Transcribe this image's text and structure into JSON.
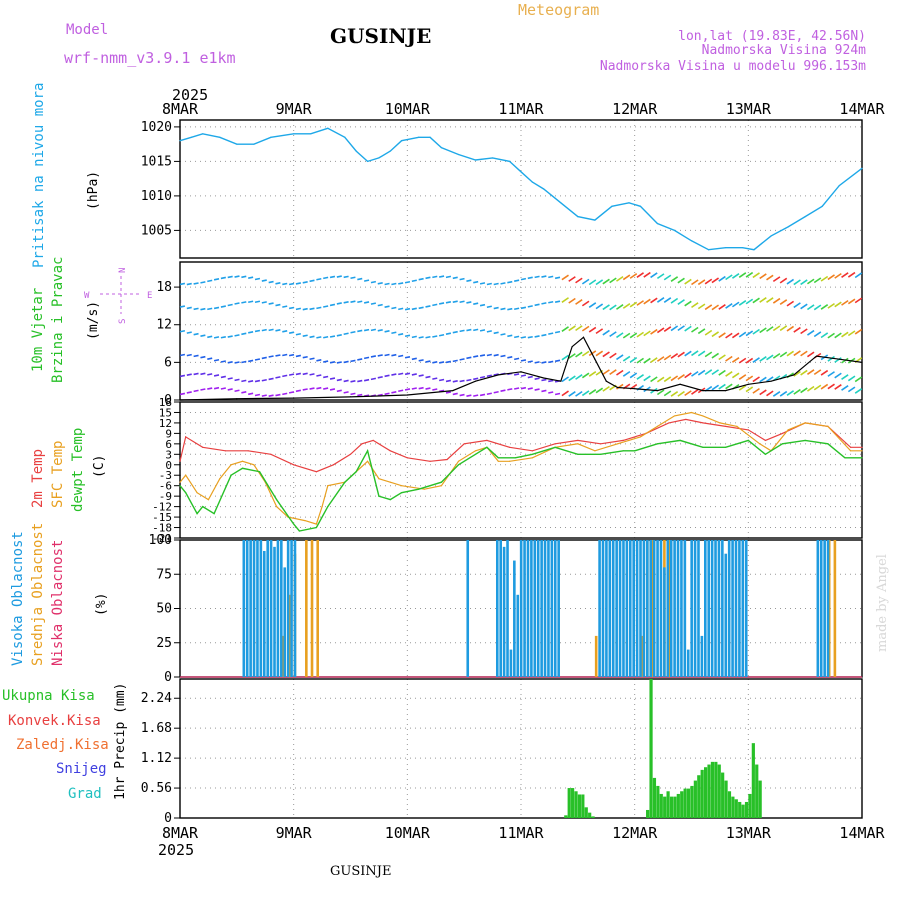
{
  "header": {
    "model_label": "Model",
    "model_name": "wrf-nmm_v3.9.1 e1km",
    "station": "GUSINJE",
    "product": "Meteogram",
    "lonlat": "lon,lat (19.83E, 42.56N)",
    "elevation": "Nadmorska Visina 924m",
    "model_elevation": "Nadmorska Visina u modelu 996.153m",
    "year": "2025",
    "footer_station": "GUSINJE",
    "credit": "made by Angel"
  },
  "colors": {
    "pressure": "#1ea8e8",
    "t2m": "#e84040",
    "sfc": "#e8a020",
    "dewpt": "#28c028",
    "high_cloud": "#1e9be0",
    "mid_cloud": "#e8a020",
    "low_cloud": "#e0306a",
    "precip": "#28c028",
    "label_purple": "#c060e0",
    "wind_speed": "#000000"
  },
  "x_axis": {
    "labels": [
      "8MAR",
      "9MAR",
      "10MAR",
      "11MAR",
      "12MAR",
      "13MAR",
      "14MAR"
    ],
    "start_day": 8,
    "end_day": 14
  },
  "panels": {
    "pressure": {
      "ylabel": "Pritisak na nivou mora",
      "unit": "(hPa)"
    },
    "wind": {
      "ylabel1": "10m Vjetar",
      "ylabel2": "Brzina i Pravac",
      "unit": "(m/s)",
      "compass": {
        "n": "N",
        "s": "S",
        "e": "E",
        "w": "W"
      }
    },
    "temp": {
      "label_t2m": "2m Temp",
      "label_sfc": "SFC Temp",
      "label_dew": "dewpt Temp",
      "unit": "(C)"
    },
    "cloud": {
      "label_high": "Visoka Oblacnost",
      "label_mid": "Srednja Oblacnost",
      "label_low": "Niska Oblacnost",
      "unit": "(%)"
    },
    "precip": {
      "label_total": "Ukupna Kisa",
      "label_conv": "Konvek.Kisa",
      "label_frz": "Zaledj.Kisa",
      "label_snow": "Snijeg",
      "label_hail": "Grad",
      "unit": "1hr Precip (mm)"
    }
  },
  "chart_data": [
    {
      "type": "line",
      "title": "",
      "ylabel": "Pritisak na nivou mora (hPa)",
      "ylim": [
        1001,
        1021
      ],
      "yticks": [
        1005,
        1010,
        1015,
        1020
      ],
      "grid": true,
      "series": [
        {
          "name": "Pritisak na nivou mora",
          "x": [
            8.0,
            8.1,
            8.2,
            8.35,
            8.5,
            8.65,
            8.8,
            9.0,
            9.15,
            9.3,
            9.45,
            9.55,
            9.65,
            9.75,
            9.85,
            9.95,
            10.1,
            10.2,
            10.3,
            10.45,
            10.6,
            10.75,
            10.9,
            11.0,
            11.1,
            11.2,
            11.35,
            11.5,
            11.65,
            11.8,
            11.95,
            12.05,
            12.2,
            12.35,
            12.5,
            12.65,
            12.8,
            12.95,
            13.05,
            13.2,
            13.35,
            13.5,
            13.65,
            13.8,
            14.0
          ],
          "values": [
            1018,
            1018.5,
            1019,
            1018.5,
            1017.5,
            1017.5,
            1018.5,
            1019,
            1019,
            1019.8,
            1018.5,
            1016.5,
            1015,
            1015.5,
            1016.5,
            1018,
            1018.5,
            1018.5,
            1017,
            1016,
            1015.2,
            1015.5,
            1015,
            1013.5,
            1012,
            1011,
            1009,
            1007,
            1006.5,
            1008.5,
            1009,
            1008.5,
            1006,
            1005,
            1003.5,
            1002.2,
            1002.5,
            1002.5,
            1002.2,
            1004.2,
            1005.5,
            1007,
            1008.5,
            1011.5,
            1014
          ]
        }
      ]
    },
    {
      "type": "line",
      "title": "",
      "ylabel": "10m Vjetar Brzina i Pravac (m/s)",
      "ylim": [
        0,
        22
      ],
      "yticks": [
        0,
        6,
        12,
        18
      ],
      "grid": true,
      "series": [
        {
          "name": "wind speed",
          "x": [
            8.0,
            8.5,
            9.0,
            9.5,
            10.0,
            10.4,
            10.6,
            10.8,
            11.0,
            11.2,
            11.35,
            11.45,
            11.55,
            11.65,
            11.75,
            11.85,
            12.0,
            12.2,
            12.4,
            12.6,
            12.8,
            13.0,
            13.2,
            13.4,
            13.6,
            13.8,
            14.0
          ],
          "values": [
            0,
            0.2,
            0.3,
            0.5,
            0.8,
            1.5,
            3,
            4,
            4.5,
            3.5,
            3,
            8.5,
            10,
            6.5,
            3,
            2,
            1.8,
            1.5,
            2.5,
            1.5,
            1.5,
            2.5,
            3,
            4,
            7,
            6.5,
            6
          ]
        }
      ]
    },
    {
      "type": "line",
      "title": "",
      "ylabel": "Temp (C)",
      "ylim": [
        -21,
        18
      ],
      "yticks": [
        -21,
        -18,
        -15,
        -12,
        -9,
        -6,
        -3,
        0,
        3,
        6,
        9,
        12,
        15,
        18
      ],
      "grid": true,
      "series": [
        {
          "name": "2m Temp",
          "x": [
            8.0,
            8.05,
            8.2,
            8.4,
            8.6,
            8.8,
            9.0,
            9.2,
            9.35,
            9.5,
            9.6,
            9.7,
            9.85,
            10.0,
            10.2,
            10.35,
            10.5,
            10.7,
            10.9,
            11.1,
            11.3,
            11.5,
            11.7,
            11.9,
            12.1,
            12.3,
            12.45,
            12.6,
            12.8,
            13.0,
            13.15,
            13.3,
            13.5,
            13.7,
            13.9,
            14.0
          ],
          "values": [
            1,
            8,
            5,
            4,
            4,
            3,
            0,
            -2,
            0,
            3,
            6,
            7,
            4,
            2,
            1,
            1.5,
            6,
            7,
            5,
            4,
            6,
            7,
            6,
            7,
            9,
            12,
            13,
            12,
            11,
            10,
            7,
            9,
            12,
            11,
            5,
            5
          ]
        },
        {
          "name": "SFC Temp",
          "x": [
            8.0,
            8.05,
            8.15,
            8.25,
            8.35,
            8.45,
            8.55,
            8.65,
            8.75,
            8.85,
            8.95,
            9.1,
            9.2,
            9.25,
            9.3,
            9.45,
            9.55,
            9.65,
            9.75,
            9.85,
            9.95,
            10.15,
            10.3,
            10.45,
            10.6,
            10.7,
            10.8,
            10.9,
            11.1,
            11.3,
            11.5,
            11.65,
            11.85,
            12.05,
            12.2,
            12.35,
            12.5,
            12.6,
            12.75,
            12.9,
            13.1,
            13.2,
            13.35,
            13.5,
            13.7,
            13.9,
            14.0
          ],
          "values": [
            -5,
            -3,
            -8,
            -10,
            -4,
            0,
            1,
            0,
            -5,
            -12,
            -15,
            -16,
            -17,
            -12,
            -6,
            -5,
            -2,
            1,
            -4,
            -5,
            -6,
            -7,
            -6,
            1,
            4,
            5,
            1,
            1,
            2,
            5,
            6,
            4,
            6,
            8,
            11,
            14,
            15,
            14,
            12,
            11,
            6,
            4,
            10,
            12,
            11,
            4,
            4
          ]
        },
        {
          "name": "dewpt Temp",
          "x": [
            8.0,
            8.05,
            8.15,
            8.2,
            8.3,
            8.45,
            8.55,
            8.7,
            8.85,
            9.0,
            9.05,
            9.2,
            9.3,
            9.45,
            9.55,
            9.65,
            9.75,
            9.85,
            9.95,
            10.1,
            10.3,
            10.45,
            10.6,
            10.7,
            10.8,
            10.95,
            11.1,
            11.3,
            11.5,
            11.7,
            11.9,
            12.0,
            12.2,
            12.4,
            12.6,
            12.8,
            13.0,
            13.15,
            13.3,
            13.5,
            13.7,
            13.85,
            14.0
          ],
          "values": [
            -6,
            -8,
            -14,
            -12,
            -14,
            -3,
            -1,
            -2,
            -10,
            -17,
            -19,
            -18,
            -12,
            -5,
            -2,
            4,
            -9,
            -10,
            -8,
            -7,
            -5,
            0,
            3,
            5,
            2,
            2,
            3,
            5,
            3,
            3,
            4,
            4,
            6,
            7,
            5,
            5,
            7,
            3,
            6,
            7,
            6,
            2,
            2
          ]
        }
      ]
    },
    {
      "type": "bar",
      "title": "",
      "ylabel": "Oblacnost (%)",
      "ylim": [
        0,
        100
      ],
      "yticks": [
        0,
        25,
        50,
        75,
        100
      ],
      "grid": true,
      "series": [
        {
          "name": "Visoka Oblacnost",
          "x": [
            8.55,
            8.58,
            8.61,
            8.64,
            8.67,
            8.7,
            8.73,
            8.76,
            8.79,
            8.82,
            8.85,
            8.88,
            8.91,
            8.94,
            8.97,
            9.0,
            10.52,
            10.78,
            10.81,
            10.84,
            10.87,
            10.9,
            10.93,
            10.96,
            10.99,
            11.02,
            11.05,
            11.08,
            11.11,
            11.14,
            11.17,
            11.2,
            11.23,
            11.26,
            11.29,
            11.32,
            11.68,
            11.71,
            11.74,
            11.77,
            11.8,
            11.83,
            11.86,
            11.89,
            11.92,
            11.95,
            11.98,
            12.01,
            12.04,
            12.07,
            12.1,
            12.13,
            12.16,
            12.19,
            12.22,
            12.25,
            12.28,
            12.31,
            12.34,
            12.37,
            12.4,
            12.43,
            12.46,
            12.49,
            12.52,
            12.55,
            12.58,
            12.61,
            12.64,
            12.67,
            12.7,
            12.73,
            12.76,
            12.79,
            12.82,
            12.85,
            12.88,
            12.91,
            12.94,
            12.97,
            13.6,
            13.63,
            13.66,
            13.69
          ],
          "values": [
            100,
            100,
            100,
            100,
            100,
            100,
            92,
            100,
            100,
            95,
            100,
            100,
            80,
            100,
            100,
            100,
            100,
            100,
            100,
            95,
            100,
            20,
            85,
            60,
            100,
            100,
            100,
            100,
            100,
            100,
            100,
            100,
            100,
            100,
            100,
            100,
            100,
            100,
            100,
            100,
            100,
            100,
            100,
            100,
            100,
            100,
            100,
            100,
            100,
            100,
            100,
            100,
            100,
            100,
            100,
            80,
            100,
            100,
            100,
            100,
            100,
            100,
            20,
            100,
            100,
            100,
            30,
            100,
            100,
            100,
            100,
            100,
            100,
            90,
            100,
            100,
            100,
            100,
            100,
            100,
            100,
            100,
            100,
            100
          ]
        },
        {
          "name": "Srednja Oblacnost",
          "x": [
            8.9,
            8.95,
            9.0,
            9.1,
            9.15,
            9.2,
            11.65,
            12.05,
            12.1,
            12.15,
            12.25,
            12.3,
            13.7,
            13.75
          ],
          "values": [
            30,
            60,
            90,
            100,
            100,
            100,
            30,
            30,
            100,
            100,
            100,
            100,
            100,
            100
          ]
        },
        {
          "name": "Niska Oblacnost",
          "x": [],
          "values": []
        }
      ]
    },
    {
      "type": "bar",
      "title": "",
      "ylabel": "1hr Precip (mm)",
      "ylim": [
        0,
        2.6
      ],
      "yticks": [
        0,
        0.56,
        1.12,
        1.68,
        2.24
      ],
      "grid": true,
      "series": [
        {
          "name": "Ukupna Kisa",
          "x": [
            11.38,
            11.41,
            11.44,
            11.47,
            11.5,
            11.53,
            11.56,
            11.59,
            11.62,
            12.1,
            12.13,
            12.16,
            12.19,
            12.22,
            12.25,
            12.28,
            12.31,
            12.34,
            12.37,
            12.4,
            12.43,
            12.46,
            12.49,
            12.52,
            12.55,
            12.58,
            12.61,
            12.64,
            12.67,
            12.7,
            12.73,
            12.76,
            12.79,
            12.82,
            12.85,
            12.88,
            12.91,
            12.94,
            12.97,
            13.0,
            13.03,
            13.06,
            13.09
          ],
          "values": [
            0.05,
            0.56,
            0.56,
            0.5,
            0.44,
            0.44,
            0.2,
            0.1,
            0.03,
            0.15,
            2.6,
            0.75,
            0.6,
            0.45,
            0.4,
            0.5,
            0.4,
            0.4,
            0.45,
            0.5,
            0.55,
            0.55,
            0.6,
            0.7,
            0.8,
            0.9,
            0.95,
            1.0,
            1.05,
            1.05,
            1.0,
            0.85,
            0.7,
            0.5,
            0.4,
            0.35,
            0.3,
            0.25,
            0.3,
            0.45,
            1.4,
            1.0,
            0.7
          ]
        }
      ]
    }
  ]
}
